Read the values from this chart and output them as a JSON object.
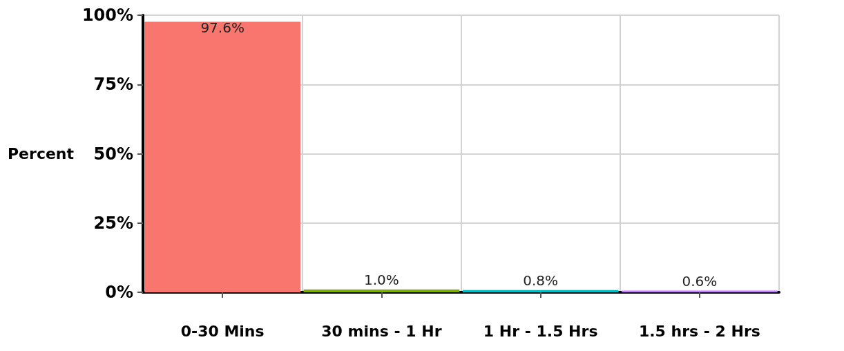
{
  "chart_data": {
    "type": "bar",
    "ylabel": "Percent",
    "categories": [
      "0-30 Mins",
      "30 mins - 1 Hr",
      "1 Hr - 1.5 Hrs",
      "1.5 hrs - 2 Hrs"
    ],
    "values": [
      97.6,
      1.0,
      0.8,
      0.6
    ],
    "colors": [
      "#f8766d",
      "#7cae00",
      "#00bfc4",
      "#c77cff"
    ],
    "value_labels": [
      "97.6%",
      "1.0%",
      "0.8%",
      "0.6%"
    ],
    "ylim": [
      0,
      100
    ],
    "yticks": [
      {
        "value": 0,
        "label": "0%"
      },
      {
        "value": 25,
        "label": "25%"
      },
      {
        "value": 50,
        "label": "50%"
      },
      {
        "value": 75,
        "label": "75%"
      },
      {
        "value": 100,
        "label": "100%"
      }
    ],
    "grid": true
  }
}
